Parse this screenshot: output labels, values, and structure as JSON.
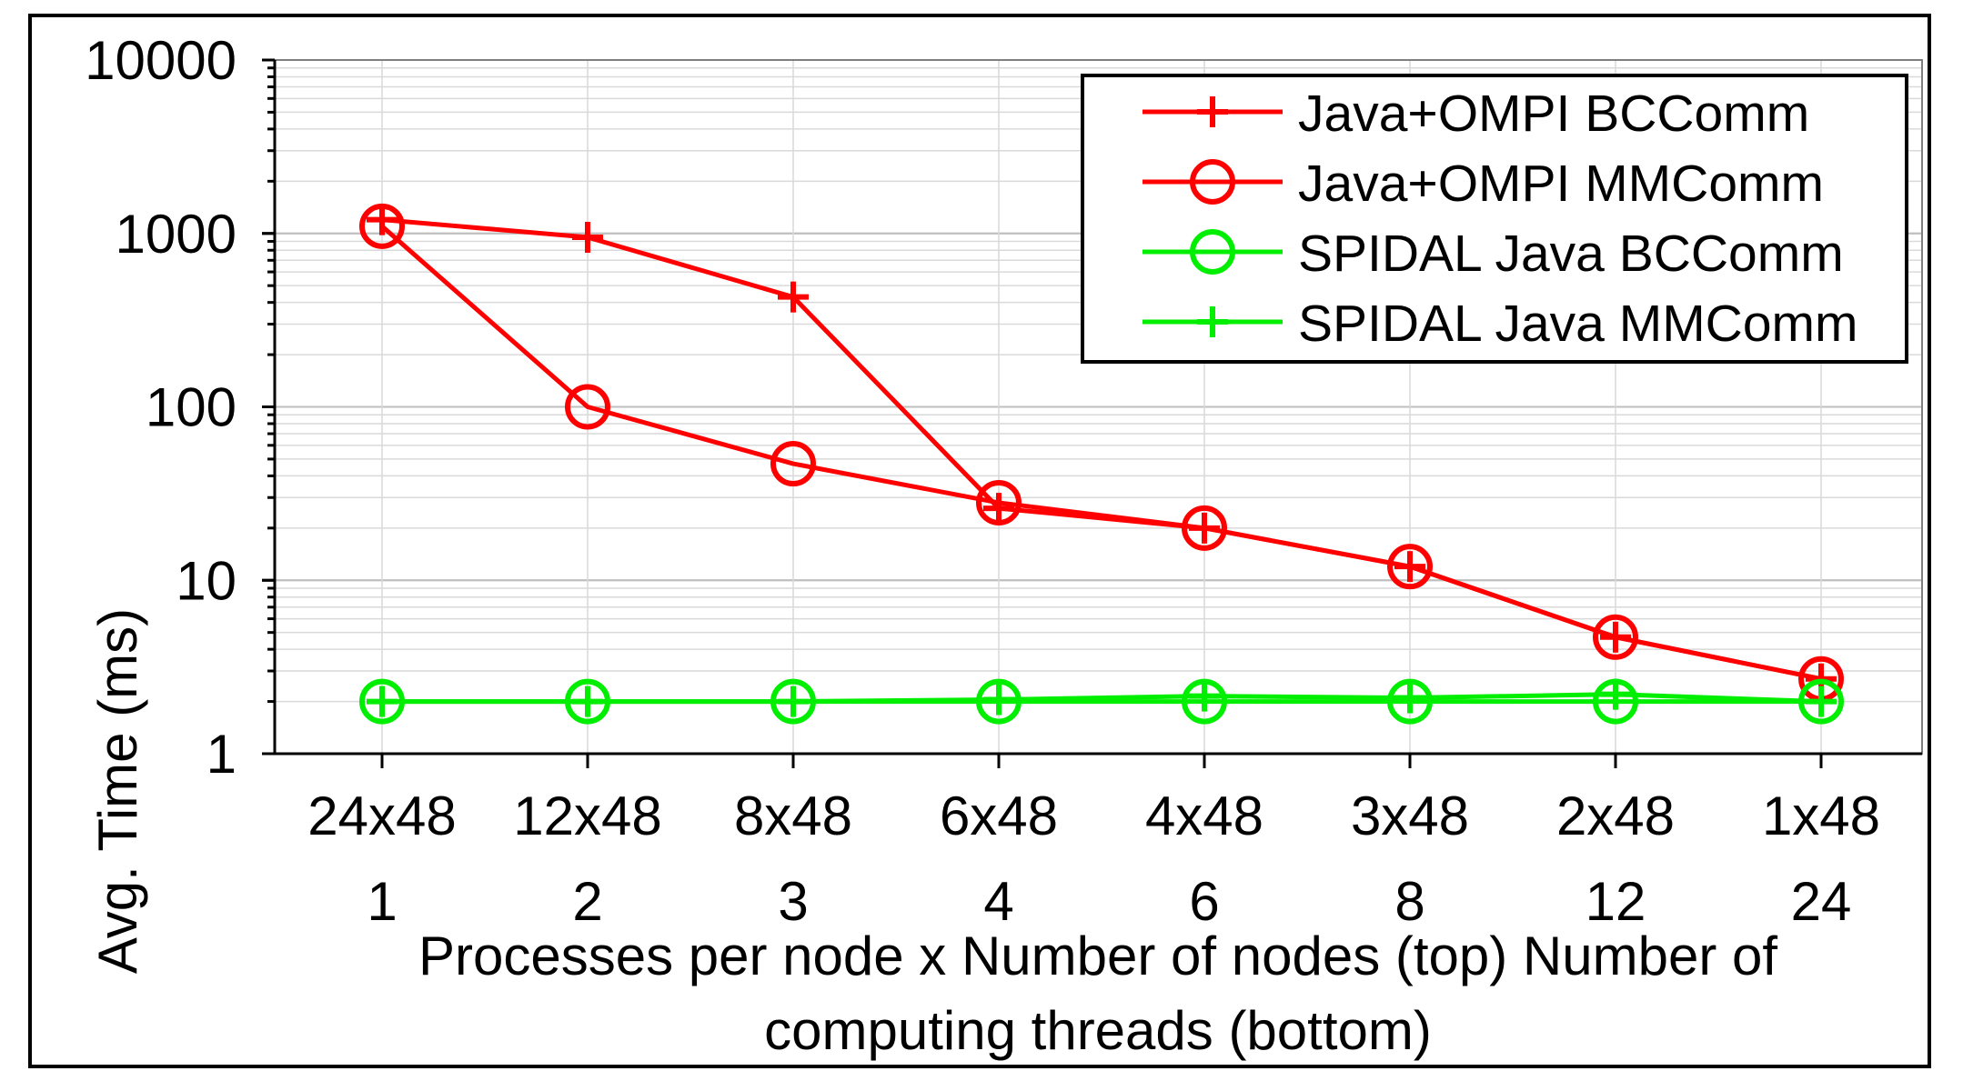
{
  "chart_data": {
    "type": "line",
    "title": "",
    "xlabel": "Processes per node x Number of nodes (top) Number of computing threads (bottom)",
    "xlabel_lines": [
      "Processes per node x Number of nodes (top) Number of",
      "computing threads (bottom)"
    ],
    "ylabel": "Avg. Time (ms)",
    "y_scale": "log",
    "ylim": [
      1,
      10000
    ],
    "y_ticks": [
      "1",
      "10",
      "100",
      "1000",
      "10000"
    ],
    "categories_top": [
      "24x48",
      "12x48",
      "8x48",
      "6x48",
      "4x48",
      "3x48",
      "2x48",
      "1x48"
    ],
    "categories_bottom": [
      "1",
      "2",
      "3",
      "4",
      "6",
      "8",
      "12",
      "24"
    ],
    "grid": true,
    "legend_position": "top-right",
    "series": [
      {
        "name": "Java+OMPI BCComm",
        "color": "#ff0000",
        "marker": "plus",
        "values": [
          1200,
          950,
          430,
          26,
          20,
          12,
          4.7,
          2.7
        ]
      },
      {
        "name": "Java+OMPI MMComm",
        "color": "#ff0000",
        "marker": "circle",
        "values": [
          1100,
          100,
          47,
          28,
          20,
          12,
          4.7,
          2.7
        ]
      },
      {
        "name": "SPIDAL Java BCComm",
        "color": "#00ee00",
        "marker": "circle",
        "values": [
          2.0,
          2.0,
          2.0,
          2.0,
          2.0,
          2.0,
          2.0,
          2.0
        ]
      },
      {
        "name": "SPIDAL Java MMComm",
        "color": "#00ee00",
        "marker": "plus",
        "values": [
          2.0,
          2.0,
          2.0,
          2.05,
          2.15,
          2.1,
          2.2,
          2.0
        ]
      }
    ]
  }
}
